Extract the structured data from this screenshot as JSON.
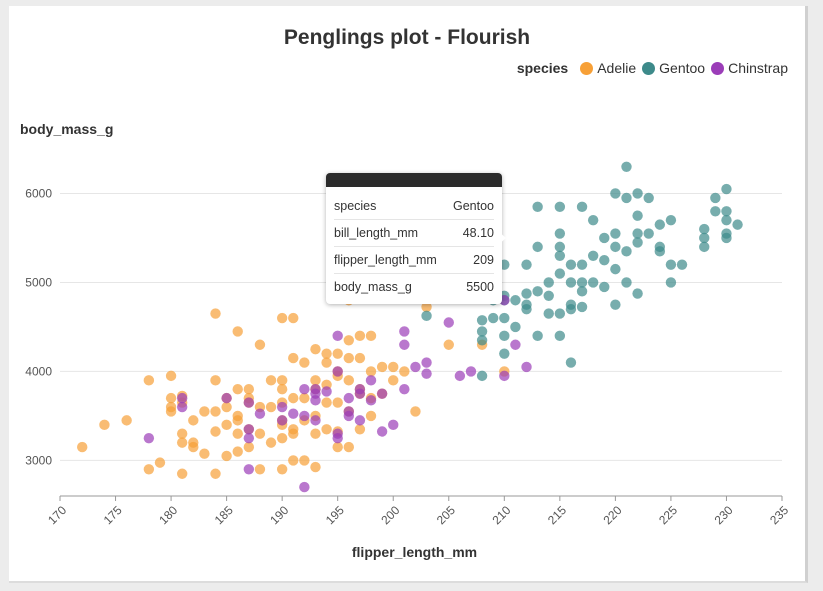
{
  "title": "Penglings plot - Flourish",
  "legend": {
    "title": "species",
    "items": [
      {
        "label": "Adelie",
        "color": "#f7a037"
      },
      {
        "label": "Gentoo",
        "color": "#3d8a8a"
      },
      {
        "label": "Chinstrap",
        "color": "#9b3db8"
      }
    ]
  },
  "tooltip": {
    "rows": [
      {
        "key": "species",
        "value": "Gentoo"
      },
      {
        "key": "bill_length_mm",
        "value": "48.10"
      },
      {
        "key": "flipper_length_mm",
        "value": "209"
      },
      {
        "key": "body_mass_g",
        "value": "5500"
      }
    ]
  },
  "chart_data": {
    "type": "scatter",
    "title": "Penglings plot - Flourish",
    "xlabel": "flipper_length_mm",
    "ylabel": "body_mass_g",
    "xlim": [
      170,
      235
    ],
    "ylim": [
      2600,
      6500
    ],
    "xticks": [
      170,
      175,
      180,
      185,
      190,
      195,
      200,
      205,
      210,
      215,
      220,
      225,
      230,
      235
    ],
    "yticks": [
      3000,
      4000,
      5000,
      6000
    ],
    "grid": true,
    "legend_position": "top-right",
    "series": [
      {
        "name": "Adelie",
        "color": "#f7a037",
        "points": [
          [
            172,
            3150
          ],
          [
            174,
            3400
          ],
          [
            176,
            3450
          ],
          [
            178,
            3900
          ],
          [
            178,
            2900
          ],
          [
            179,
            2975
          ],
          [
            180,
            3950
          ],
          [
            180,
            3700
          ],
          [
            180,
            3600
          ],
          [
            180,
            3550
          ],
          [
            181,
            3200
          ],
          [
            181,
            3300
          ],
          [
            181,
            2850
          ],
          [
            181,
            3725
          ],
          [
            181,
            3650
          ],
          [
            182,
            3200
          ],
          [
            182,
            3150
          ],
          [
            182,
            3450
          ],
          [
            183,
            3550
          ],
          [
            183,
            3075
          ],
          [
            184,
            3900
          ],
          [
            184,
            4650
          ],
          [
            184,
            3550
          ],
          [
            184,
            3325
          ],
          [
            184,
            2850
          ],
          [
            185,
            3700
          ],
          [
            185,
            3400
          ],
          [
            185,
            3600
          ],
          [
            185,
            3050
          ],
          [
            186,
            3800
          ],
          [
            186,
            4450
          ],
          [
            186,
            3500
          ],
          [
            186,
            3450
          ],
          [
            186,
            3300
          ],
          [
            186,
            3100
          ],
          [
            187,
            3800
          ],
          [
            187,
            3700
          ],
          [
            187,
            3650
          ],
          [
            187,
            3350
          ],
          [
            187,
            3150
          ],
          [
            188,
            4300
          ],
          [
            188,
            3600
          ],
          [
            188,
            3300
          ],
          [
            188,
            2900
          ],
          [
            189,
            3600
          ],
          [
            189,
            3200
          ],
          [
            189,
            3900
          ],
          [
            190,
            3650
          ],
          [
            190,
            3800
          ],
          [
            190,
            3450
          ],
          [
            190,
            3900
          ],
          [
            190,
            4600
          ],
          [
            190,
            3400
          ],
          [
            190,
            3250
          ],
          [
            190,
            2900
          ],
          [
            191,
            3700
          ],
          [
            191,
            3350
          ],
          [
            191,
            3300
          ],
          [
            191,
            3000
          ],
          [
            191,
            4600
          ],
          [
            191,
            4150
          ],
          [
            192,
            3700
          ],
          [
            192,
            3450
          ],
          [
            192,
            4100
          ],
          [
            192,
            3000
          ],
          [
            193,
            3800
          ],
          [
            193,
            4250
          ],
          [
            193,
            3900
          ],
          [
            193,
            3500
          ],
          [
            193,
            3300
          ],
          [
            193,
            2925
          ],
          [
            194,
            4100
          ],
          [
            194,
            3850
          ],
          [
            194,
            3650
          ],
          [
            194,
            3350
          ],
          [
            194,
            4200
          ],
          [
            195,
            4200
          ],
          [
            195,
            3950
          ],
          [
            195,
            3650
          ],
          [
            195,
            3325
          ],
          [
            195,
            4000
          ],
          [
            195,
            3150
          ],
          [
            196,
            4350
          ],
          [
            196,
            3900
          ],
          [
            196,
            3550
          ],
          [
            196,
            4150
          ],
          [
            196,
            3150
          ],
          [
            197,
            4400
          ],
          [
            197,
            4150
          ],
          [
            197,
            3800
          ],
          [
            197,
            3750
          ],
          [
            197,
            3350
          ],
          [
            198,
            4400
          ],
          [
            198,
            4000
          ],
          [
            198,
            3700
          ],
          [
            198,
            3500
          ],
          [
            199,
            3750
          ],
          [
            199,
            4050
          ],
          [
            200,
            4050
          ],
          [
            200,
            3900
          ],
          [
            201,
            4000
          ],
          [
            202,
            3550
          ],
          [
            203,
            4725
          ],
          [
            205,
            4300
          ],
          [
            208,
            4300
          ],
          [
            210,
            4000
          ],
          [
            196,
            4800
          ]
        ]
      },
      {
        "name": "Gentoo",
        "color": "#3d8a8a",
        "points": [
          [
            203,
            4625
          ],
          [
            208,
            4575
          ],
          [
            208,
            4450
          ],
          [
            208,
            4350
          ],
          [
            208,
            3950
          ],
          [
            209,
            5500
          ],
          [
            209,
            4800
          ],
          [
            209,
            4600
          ],
          [
            210,
            5200
          ],
          [
            210,
            4850
          ],
          [
            210,
            4600
          ],
          [
            210,
            4400
          ],
          [
            210,
            4200
          ],
          [
            210,
            4800
          ],
          [
            211,
            4500
          ],
          [
            211,
            4800
          ],
          [
            212,
            4750
          ],
          [
            212,
            4700
          ],
          [
            212,
            4875
          ],
          [
            212,
            5200
          ],
          [
            213,
            4900
          ],
          [
            213,
            5400
          ],
          [
            213,
            5850
          ],
          [
            213,
            4400
          ],
          [
            214,
            4650
          ],
          [
            214,
            4850
          ],
          [
            214,
            5000
          ],
          [
            215,
            4650
          ],
          [
            215,
            5400
          ],
          [
            215,
            5550
          ],
          [
            215,
            5300
          ],
          [
            215,
            4400
          ],
          [
            215,
            5850
          ],
          [
            215,
            5100
          ],
          [
            216,
            4700
          ],
          [
            216,
            5000
          ],
          [
            216,
            4750
          ],
          [
            216,
            5200
          ],
          [
            216,
            4100
          ],
          [
            217,
            5000
          ],
          [
            217,
            4900
          ],
          [
            217,
            5850
          ],
          [
            217,
            5200
          ],
          [
            217,
            4725
          ],
          [
            218,
            5700
          ],
          [
            218,
            5000
          ],
          [
            218,
            5300
          ],
          [
            219,
            4950
          ],
          [
            219,
            5500
          ],
          [
            219,
            5250
          ],
          [
            220,
            5400
          ],
          [
            220,
            5550
          ],
          [
            220,
            6000
          ],
          [
            220,
            4750
          ],
          [
            220,
            5150
          ],
          [
            221,
            5950
          ],
          [
            221,
            6300
          ],
          [
            221,
            5350
          ],
          [
            221,
            5000
          ],
          [
            222,
            5750
          ],
          [
            222,
            5550
          ],
          [
            222,
            5450
          ],
          [
            222,
            6000
          ],
          [
            222,
            4875
          ],
          [
            223,
            5550
          ],
          [
            223,
            5950
          ],
          [
            224,
            5350
          ],
          [
            224,
            5650
          ],
          [
            224,
            5400
          ],
          [
            225,
            5200
          ],
          [
            225,
            5700
          ],
          [
            225,
            5000
          ],
          [
            226,
            5200
          ],
          [
            228,
            5600
          ],
          [
            228,
            5400
          ],
          [
            228,
            5500
          ],
          [
            229,
            5950
          ],
          [
            229,
            5800
          ],
          [
            230,
            5550
          ],
          [
            230,
            5700
          ],
          [
            230,
            6050
          ],
          [
            230,
            5800
          ],
          [
            230,
            5500
          ],
          [
            231,
            5650
          ]
        ]
      },
      {
        "name": "Chinstrap",
        "color": "#9b3db8",
        "points": [
          [
            178,
            3250
          ],
          [
            181,
            3700
          ],
          [
            181,
            3600
          ],
          [
            185,
            3700
          ],
          [
            187,
            3650
          ],
          [
            187,
            3350
          ],
          [
            187,
            3250
          ],
          [
            187,
            2900
          ],
          [
            188,
            3525
          ],
          [
            190,
            3600
          ],
          [
            190,
            3450
          ],
          [
            191,
            3525
          ],
          [
            192,
            2700
          ],
          [
            192,
            3500
          ],
          [
            193,
            3800
          ],
          [
            193,
            3750
          ],
          [
            193,
            3675
          ],
          [
            193,
            3450
          ],
          [
            194,
            3775
          ],
          [
            195,
            4400
          ],
          [
            195,
            3300
          ],
          [
            195,
            3250
          ],
          [
            196,
            3550
          ],
          [
            196,
            3700
          ],
          [
            196,
            3500
          ],
          [
            197,
            3750
          ],
          [
            197,
            3450
          ],
          [
            198,
            3675
          ],
          [
            198,
            3900
          ],
          [
            199,
            3325
          ],
          [
            200,
            3400
          ],
          [
            201,
            4450
          ],
          [
            201,
            3800
          ],
          [
            201,
            4300
          ],
          [
            203,
            4100
          ],
          [
            203,
            3975
          ],
          [
            205,
            4550
          ],
          [
            206,
            3950
          ],
          [
            207,
            4000
          ],
          [
            210,
            4800
          ],
          [
            211,
            4300
          ],
          [
            212,
            4050
          ],
          [
            195,
            4000
          ],
          [
            199,
            3750
          ],
          [
            202,
            4050
          ],
          [
            192,
            3800
          ],
          [
            210,
            3950
          ],
          [
            197,
            3800
          ]
        ]
      }
    ]
  }
}
